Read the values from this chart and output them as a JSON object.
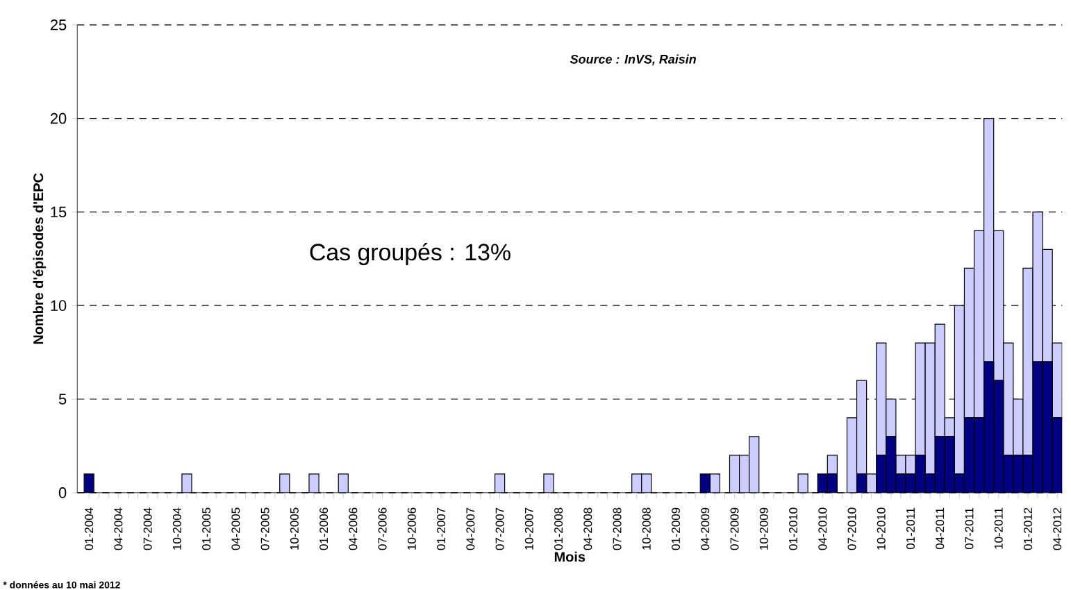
{
  "chart_data": {
    "type": "bar",
    "stacked": true,
    "xlabel": "Mois",
    "ylabel": "Nombre d'épisodes d'EPC",
    "categories": [
      "01-2004",
      null,
      null,
      "04-2004",
      null,
      null,
      "07-2004",
      null,
      null,
      "10-2004",
      null,
      null,
      "01-2005",
      null,
      null,
      "04-2005",
      null,
      null,
      "07-2005",
      null,
      null,
      "10-2005",
      null,
      null,
      "01-2006",
      null,
      null,
      "04-2006",
      null,
      null,
      "07-2006",
      null,
      null,
      "10-2006",
      null,
      null,
      "01-2007",
      null,
      null,
      "04-2007",
      null,
      null,
      "07-2007",
      null,
      null,
      "10-2007",
      null,
      null,
      "01-2008",
      null,
      null,
      "04-2008",
      null,
      null,
      "07-2008",
      null,
      null,
      "10-2008",
      null,
      null,
      "01-2009",
      null,
      null,
      "04-2009",
      null,
      null,
      "07-2009",
      null,
      null,
      "10-2009",
      null,
      null,
      "01-2010",
      null,
      null,
      "04-2010",
      null,
      null,
      "07-2010",
      null,
      null,
      "10-2010",
      null,
      null,
      "01-2011",
      null,
      null,
      "04-2011",
      null,
      null,
      "07-2011",
      null,
      null,
      "10-2011",
      null,
      null,
      "01-2012",
      null,
      null,
      "04-2012"
    ],
    "series": [
      {
        "color": "#000080",
        "values": [
          1,
          0,
          0,
          0,
          0,
          0,
          0,
          0,
          0,
          0,
          0,
          0,
          0,
          0,
          0,
          0,
          0,
          0,
          0,
          0,
          0,
          0,
          0,
          0,
          0,
          0,
          0,
          0,
          0,
          0,
          0,
          0,
          0,
          0,
          0,
          0,
          0,
          0,
          0,
          0,
          0,
          0,
          0,
          0,
          0,
          0,
          0,
          0,
          0,
          0,
          0,
          0,
          0,
          0,
          0,
          0,
          0,
          0,
          0,
          0,
          0,
          0,
          0,
          1,
          0,
          0,
          0,
          0,
          0,
          0,
          0,
          0,
          0,
          0,
          0,
          1,
          1,
          0,
          0,
          1,
          0,
          2,
          3,
          1,
          1,
          2,
          1,
          3,
          3,
          1,
          4,
          4,
          7,
          6,
          2,
          2,
          2,
          7,
          7,
          4
        ]
      },
      {
        "color": "#ccccff",
        "values": [
          0,
          0,
          0,
          0,
          0,
          0,
          0,
          0,
          0,
          0,
          1,
          0,
          0,
          0,
          0,
          0,
          0,
          0,
          0,
          0,
          1,
          0,
          0,
          1,
          0,
          0,
          1,
          0,
          0,
          0,
          0,
          0,
          0,
          0,
          0,
          0,
          0,
          0,
          0,
          0,
          0,
          0,
          1,
          0,
          0,
          0,
          0,
          1,
          0,
          0,
          0,
          0,
          0,
          0,
          0,
          0,
          1,
          1,
          0,
          0,
          0,
          0,
          0,
          0,
          1,
          0,
          2,
          2,
          3,
          0,
          0,
          0,
          0,
          1,
          0,
          0,
          1,
          0,
          4,
          5,
          1,
          6,
          2,
          1,
          1,
          6,
          7,
          6,
          1,
          9,
          8,
          10,
          13,
          8,
          6,
          3,
          10,
          8,
          6,
          4
        ]
      }
    ],
    "ylim": [
      0,
      25
    ],
    "yticks": [
      0,
      5,
      10,
      15,
      20,
      25
    ],
    "grid": "y",
    "line_style": "dashed",
    "annotations": [
      "Cas groupés : 13%",
      "Source : InVS, Raisin",
      "* données au 10 mai 2012"
    ]
  }
}
